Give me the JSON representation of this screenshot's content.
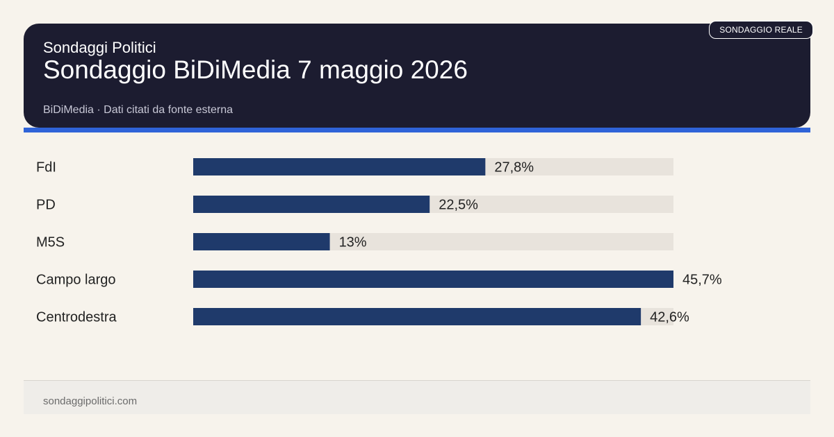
{
  "header": {
    "kicker": "Sondaggi Politici",
    "title": "Sondaggio BiDiMedia 7 maggio 2026",
    "source": "BiDiMedia · Dati citati da fonte esterna",
    "badge": "SONDAGGIO REALE"
  },
  "footer": {
    "site": "sondaggipolitici.com"
  },
  "colors": {
    "bar": "#1f3a6b",
    "track": "#e8e3dc",
    "label": "#222222",
    "accent": "#2f63d8"
  },
  "chart_data": {
    "type": "bar",
    "orientation": "horizontal",
    "categories": [
      "FdI",
      "PD",
      "M5S",
      "Campo largo",
      "Centrodestra"
    ],
    "values": [
      27.8,
      22.5,
      13,
      45.7,
      42.6
    ],
    "value_labels": [
      "27,8%",
      "22,5%",
      "13%",
      "45,7%",
      "42,6%"
    ],
    "xlim": [
      0,
      45.7
    ],
    "grid": false,
    "legend": "none"
  }
}
